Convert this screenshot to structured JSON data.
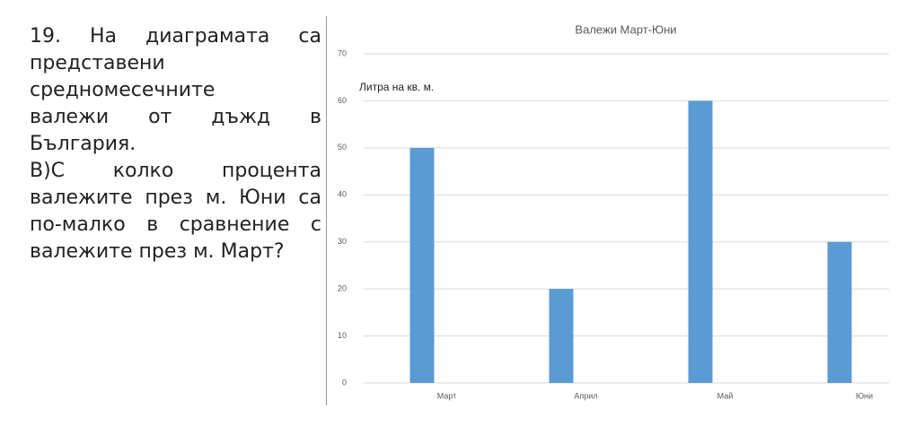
{
  "question": {
    "lines": [
      "19. На диаграмата са",
      "представени",
      "средномесечните",
      "валежи от дъжд в",
      "България.",
      "В)С колко процента",
      "валежите през м. Юни са",
      "по-малко в сравнение с",
      "валежите през м. Март?"
    ]
  },
  "chart_data": {
    "type": "bar",
    "title": "Валежи Март-Юни",
    "y_label": "Литра на кв. м.",
    "categories": [
      "Март",
      "Април",
      "Май",
      "Юни"
    ],
    "values": [
      50,
      20,
      60,
      30
    ],
    "color": "#5b9bd5",
    "ylim": [
      0,
      70
    ],
    "yticks": [
      0,
      10,
      20,
      30,
      40,
      50,
      60,
      70
    ],
    "grid": true
  }
}
